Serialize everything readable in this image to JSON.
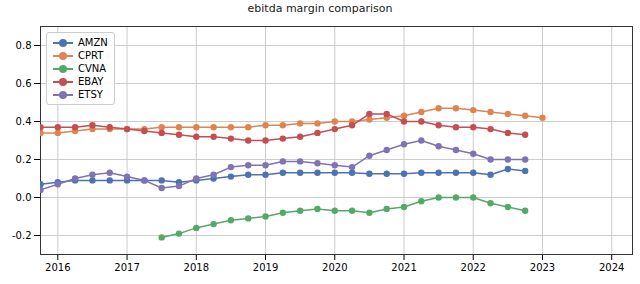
{
  "chart_data": {
    "type": "line",
    "title": "ebitda margin comparison",
    "x": [
      2015.75,
      2016,
      2016.25,
      2016.5,
      2016.75,
      2017,
      2017.25,
      2017.5,
      2017.75,
      2018,
      2018.25,
      2018.5,
      2018.75,
      2019,
      2019.25,
      2019.5,
      2019.75,
      2020,
      2020.25,
      2020.5,
      2020.75,
      2021,
      2021.25,
      2021.5,
      2021.75,
      2022,
      2022.25,
      2022.5,
      2022.75,
      2023
    ],
    "series": [
      {
        "name": "AMZN",
        "color": "#4c72b0",
        "values": [
          0.07,
          0.08,
          0.09,
          0.09,
          0.09,
          0.09,
          0.09,
          0.09,
          0.08,
          0.09,
          0.1,
          0.11,
          0.12,
          0.12,
          0.13,
          0.13,
          0.13,
          0.13,
          0.13,
          0.125,
          0.125,
          0.125,
          0.13,
          0.13,
          0.13,
          0.13,
          0.12,
          0.15,
          0.14,
          null
        ]
      },
      {
        "name": "CPRT",
        "color": "#dd8452",
        "values": [
          0.34,
          0.34,
          0.35,
          0.36,
          0.36,
          0.36,
          0.36,
          0.37,
          0.37,
          0.37,
          0.37,
          0.37,
          0.37,
          0.38,
          0.38,
          0.39,
          0.39,
          0.4,
          0.4,
          0.41,
          0.42,
          0.43,
          0.45,
          0.47,
          0.47,
          0.46,
          0.45,
          0.44,
          0.43,
          0.42
        ]
      },
      {
        "name": "CVNA",
        "color": "#55a868",
        "values": [
          null,
          null,
          null,
          null,
          null,
          null,
          null,
          -0.21,
          -0.19,
          -0.16,
          -0.14,
          -0.12,
          -0.11,
          -0.1,
          -0.08,
          -0.07,
          -0.06,
          -0.07,
          -0.07,
          -0.08,
          -0.06,
          -0.05,
          -0.02,
          0.0,
          0.0,
          0.0,
          -0.03,
          -0.05,
          -0.07,
          null
        ]
      },
      {
        "name": "EBAY",
        "color": "#c44e52",
        "values": [
          0.37,
          0.37,
          0.37,
          0.38,
          0.37,
          0.36,
          0.35,
          0.34,
          0.33,
          0.32,
          0.32,
          0.31,
          0.3,
          0.3,
          0.31,
          0.32,
          0.34,
          0.36,
          0.38,
          0.44,
          0.44,
          0.4,
          0.4,
          0.38,
          0.37,
          0.37,
          0.36,
          0.34,
          0.33,
          null
        ]
      },
      {
        "name": "ETSY",
        "color": "#8172b3",
        "values": [
          0.04,
          0.07,
          0.1,
          0.12,
          0.13,
          0.11,
          0.09,
          0.05,
          0.06,
          0.1,
          0.12,
          0.16,
          0.17,
          0.17,
          0.19,
          0.19,
          0.18,
          0.17,
          0.16,
          0.22,
          0.25,
          0.28,
          0.3,
          0.27,
          0.25,
          0.23,
          0.2,
          0.2,
          0.2,
          null
        ]
      }
    ],
    "xlim": [
      2015.75,
      2024.3
    ],
    "xticks": [
      2016,
      2017,
      2018,
      2019,
      2020,
      2021,
      2022,
      2023,
      2024
    ],
    "ylim": [
      -0.3,
      0.9
    ],
    "yticks": [
      -0.2,
      0.0,
      0.2,
      0.4,
      0.6,
      0.8
    ],
    "grid": true,
    "legend": "upper left",
    "marker": "o"
  }
}
